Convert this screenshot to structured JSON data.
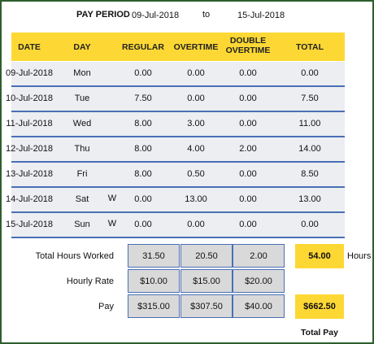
{
  "header": {
    "label": "PAY PERIOD",
    "start": "09-Jul-2018",
    "to": "to",
    "end": "15-Jul-2018"
  },
  "table": {
    "columns": [
      "DATE",
      "DAY",
      "REGULAR",
      "OVERTIME",
      "DOUBLE OVERTIME",
      "TOTAL"
    ],
    "rows": [
      {
        "date": "09-Jul-2018",
        "day": "Mon",
        "regular": "0.00",
        "overtime": "0.00",
        "double": "0.00",
        "total": "0.00"
      },
      {
        "date": "10-Jul-2018",
        "day": "Tue",
        "regular": "7.50",
        "overtime": "0.00",
        "double": "0.00",
        "total": "7.50"
      },
      {
        "date": "11-Jul-2018",
        "day": "Wed",
        "regular": "8.00",
        "overtime": "3.00",
        "double": "0.00",
        "total": "11.00"
      },
      {
        "date": "12-Jul-2018",
        "day": "Thu",
        "regular": "8.00",
        "overtime": "4.00",
        "double": "2.00",
        "total": "14.00"
      },
      {
        "date": "13-Jul-2018",
        "day": "Fri",
        "regular": "8.00",
        "overtime": "0.50",
        "double": "0.00",
        "total": "8.50"
      },
      {
        "date": "14-Jul-2018",
        "day": "Sat",
        "flag": "W",
        "regular": "0.00",
        "overtime": "13.00",
        "double": "0.00",
        "total": "13.00"
      },
      {
        "date": "15-Jul-2018",
        "day": "Sun",
        "flag": "W",
        "regular": "0.00",
        "overtime": "0.00",
        "double": "0.00",
        "total": "0.00"
      }
    ]
  },
  "summary": [
    {
      "label": "Total Hours Worked",
      "values": [
        "31.50",
        "20.50",
        "2.00"
      ],
      "total": "54.00",
      "unit": "Hours"
    },
    {
      "label": "Hourly Rate",
      "values": [
        "$10.00",
        "$15.00",
        "$20.00"
      ]
    },
    {
      "label": "Pay",
      "values": [
        "$315.00",
        "$307.50",
        "$40.00"
      ],
      "total": "$662.50"
    }
  ],
  "total_pay_label": "Total Pay"
}
